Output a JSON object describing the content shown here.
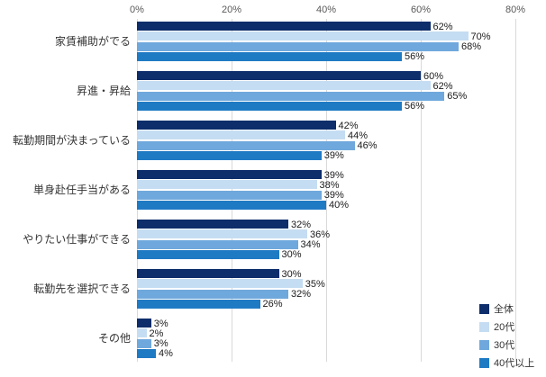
{
  "chart_data": {
    "type": "bar",
    "orientation": "horizontal",
    "title": "",
    "xlabel": "",
    "ylabel": "",
    "xlim": [
      0,
      80
    ],
    "x_ticks": [
      "0%",
      "20%",
      "40%",
      "60%",
      "80%"
    ],
    "x_tick_values": [
      0,
      20,
      40,
      60,
      80
    ],
    "grid": true,
    "value_suffix": "%",
    "legend_position": "bottom-right",
    "categories": [
      "家賃補助がでる",
      "昇進・昇給",
      "転勤期間が決まっている",
      "単身赴任手当がある",
      "やりたい仕事ができる",
      "転勤先を選択できる",
      "その他"
    ],
    "series": [
      {
        "name": "全体",
        "color": "#0d2d6b",
        "values": [
          62,
          60,
          42,
          39,
          32,
          30,
          3
        ]
      },
      {
        "name": "20代",
        "color": "#c5ddf2",
        "values": [
          70,
          62,
          44,
          38,
          36,
          35,
          2
        ]
      },
      {
        "name": "30代",
        "color": "#6fa8dc",
        "values": [
          68,
          65,
          46,
          39,
          34,
          32,
          3
        ]
      },
      {
        "name": "40代以上",
        "color": "#1f7ac4",
        "values": [
          56,
          56,
          39,
          40,
          30,
          26,
          4
        ]
      }
    ]
  }
}
